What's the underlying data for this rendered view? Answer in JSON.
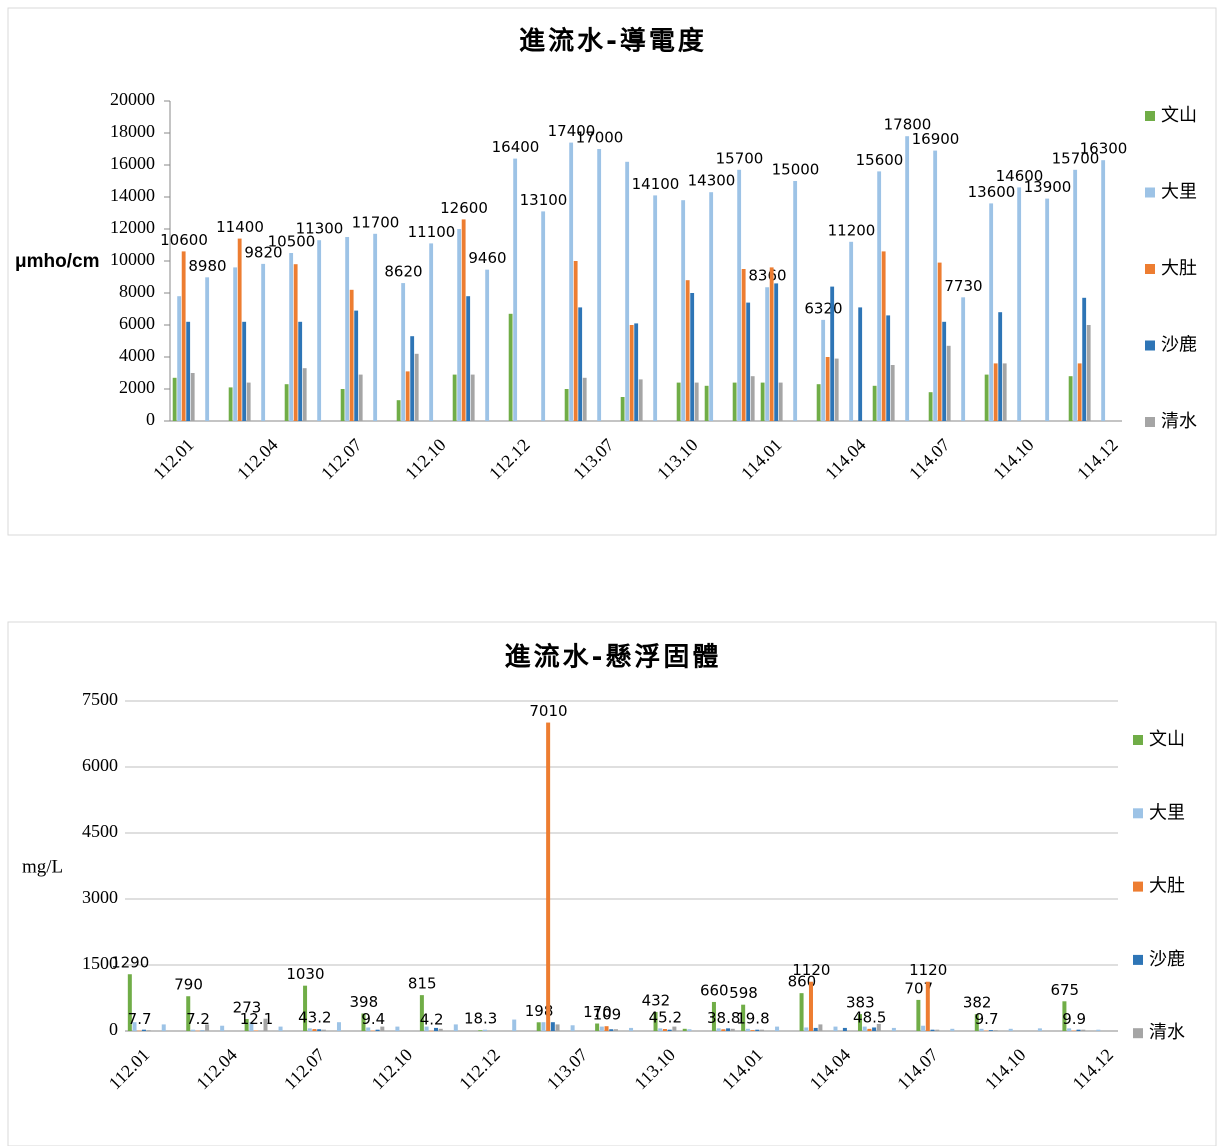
{
  "chart_data": [
    {
      "type": "bar",
      "title": "進流水-導電度",
      "y_label": "μmho/cm",
      "grid": false,
      "categories": [
        "112.01",
        null,
        null,
        "112.04",
        null,
        null,
        "112.07",
        null,
        null,
        "112.10",
        null,
        null,
        "112.12",
        null,
        null,
        "113.07",
        null,
        null,
        "113.10",
        null,
        null,
        "114.01",
        null,
        null,
        "114.04",
        null,
        null,
        "114.07",
        null,
        null,
        "114.10",
        null,
        null,
        "114.12"
      ],
      "ylim": [
        0,
        20000
      ],
      "yticks": [
        0,
        2000,
        4000,
        6000,
        8000,
        10000,
        12000,
        14000,
        16000,
        18000,
        20000
      ],
      "series": [
        {
          "name": "文山",
          "color": "#70ad47",
          "values": [
            2700,
            null,
            2100,
            null,
            2300,
            null,
            2000,
            null,
            1300,
            null,
            2900,
            null,
            6700,
            null,
            2000,
            null,
            1500,
            null,
            2400,
            2200,
            2400,
            2400,
            null,
            2300,
            null,
            2200,
            null,
            1800,
            null,
            2900,
            null,
            null,
            2800,
            null
          ]
        },
        {
          "name": "大里",
          "color": "#9dc3e6",
          "values": [
            7800,
            8980,
            9600,
            9820,
            10500,
            11300,
            11500,
            11700,
            8620,
            11100,
            12000,
            9460,
            16400,
            13100,
            17400,
            17000,
            16200,
            14100,
            13800,
            14300,
            15700,
            8360,
            15000,
            6320,
            11200,
            15600,
            17800,
            16900,
            7730,
            13600,
            14600,
            13900,
            15700,
            16300
          ],
          "value_labels": [
            null,
            "8980",
            null,
            "9820",
            "10500",
            "11300",
            null,
            "11700",
            "8620",
            "11100",
            null,
            "9460",
            "16400",
            "13100",
            "17400",
            "17000",
            null,
            "14100",
            null,
            "14300",
            "15700",
            "8360",
            "15000",
            "6320",
            "11200",
            "15600",
            "17800",
            "16900",
            "7730",
            "13600",
            "14600",
            "13900",
            "15700",
            "16300"
          ]
        },
        {
          "name": "大肚",
          "color": "#ed7d31",
          "values": [
            10600,
            null,
            11400,
            null,
            9800,
            null,
            8200,
            null,
            3100,
            null,
            12600,
            null,
            null,
            null,
            10000,
            null,
            6000,
            null,
            8800,
            null,
            9500,
            9600,
            null,
            4000,
            null,
            10600,
            null,
            9900,
            null,
            3600,
            null,
            null,
            3600,
            null
          ],
          "value_labels": [
            "10600",
            null,
            "11400",
            null,
            null,
            null,
            null,
            null,
            null,
            null,
            "12600",
            null,
            null,
            null,
            null,
            null,
            null,
            null,
            null,
            null,
            null,
            null,
            null,
            null,
            null,
            null,
            null,
            null,
            null,
            null,
            null,
            null,
            null,
            null
          ]
        },
        {
          "name": "沙鹿",
          "color": "#2e75b6",
          "values": [
            6200,
            null,
            6200,
            null,
            6200,
            null,
            6900,
            null,
            5300,
            null,
            7800,
            null,
            null,
            null,
            7100,
            null,
            6100,
            null,
            8000,
            null,
            7400,
            8600,
            null,
            8400,
            7100,
            6600,
            null,
            6200,
            null,
            6800,
            null,
            null,
            7700,
            null
          ]
        },
        {
          "name": "清水",
          "color": "#a5a5a5",
          "values": [
            3000,
            null,
            2400,
            null,
            3300,
            null,
            2900,
            null,
            4200,
            null,
            2900,
            null,
            null,
            null,
            2700,
            null,
            2600,
            null,
            2400,
            null,
            2800,
            2400,
            null,
            3900,
            null,
            3500,
            null,
            4700,
            null,
            3600,
            null,
            null,
            6000,
            null
          ]
        }
      ]
    },
    {
      "type": "bar",
      "title": "進流水-懸浮固體",
      "y_label": "mg/L",
      "grid": true,
      "categories": [
        "112.01",
        null,
        null,
        "112.04",
        null,
        null,
        "112.07",
        null,
        null,
        "112.10",
        null,
        null,
        "112.12",
        null,
        null,
        "113.07",
        null,
        null,
        "113.10",
        null,
        null,
        "114.01",
        null,
        null,
        "114.04",
        null,
        null,
        "114.07",
        null,
        null,
        "114.10",
        null,
        null,
        "114.12"
      ],
      "ylim": [
        0,
        7500
      ],
      "yticks": [
        0,
        1500,
        3000,
        4500,
        6000,
        7500
      ],
      "series": [
        {
          "name": "文山",
          "color": "#70ad47",
          "values": [
            1290,
            null,
            790,
            null,
            273,
            null,
            1030,
            null,
            398,
            null,
            815,
            null,
            18.3,
            null,
            198,
            null,
            170,
            null,
            432,
            50,
            660,
            598,
            null,
            860,
            null,
            383,
            null,
            707,
            null,
            382,
            null,
            null,
            675,
            null
          ],
          "value_labels": [
            "1290",
            null,
            "790",
            null,
            "273",
            null,
            "1030",
            null,
            "398",
            null,
            "815",
            null,
            "18.3",
            null,
            "198",
            null,
            "170",
            null,
            "432",
            null,
            "660",
            "598",
            null,
            "860",
            null,
            "383",
            null,
            "707",
            null,
            "382",
            null,
            null,
            "675",
            null
          ]
        },
        {
          "name": "大里",
          "color": "#9dc3e6",
          "values": [
            200,
            150,
            30,
            120,
            200,
            100,
            60,
            200,
            80,
            100,
            100,
            150,
            30,
            260,
            200,
            130,
            100,
            70,
            60,
            40,
            60,
            50,
            100,
            80,
            100,
            100,
            70,
            120,
            50,
            50,
            50,
            60,
            60,
            30
          ]
        },
        {
          "name": "大肚",
          "color": "#ed7d31",
          "values": [
            7.7,
            null,
            7.2,
            null,
            12.1,
            null,
            43.2,
            null,
            9.4,
            null,
            4.2,
            null,
            null,
            null,
            7010,
            null,
            109,
            null,
            45.2,
            null,
            38.8,
            19.8,
            null,
            1120,
            null,
            48.5,
            null,
            1120,
            null,
            9.7,
            null,
            null,
            9.9,
            null
          ],
          "value_labels": [
            "7.7",
            null,
            "7.2",
            null,
            "12.1",
            null,
            "43.2",
            null,
            "9.4",
            null,
            "4.2",
            null,
            null,
            null,
            "7010",
            null,
            "109",
            null,
            "45.2",
            null,
            "38.8",
            "19.8",
            null,
            "1120",
            null,
            "48.5",
            null,
            "1120",
            null,
            "9.7",
            null,
            null,
            "9.9",
            null
          ]
        },
        {
          "name": "沙鹿",
          "color": "#2e75b6",
          "values": [
            30,
            null,
            10,
            null,
            null,
            null,
            40,
            null,
            30,
            null,
            70,
            null,
            null,
            null,
            200,
            null,
            40,
            null,
            30,
            null,
            60,
            30,
            null,
            70,
            70,
            80,
            null,
            30,
            null,
            20,
            null,
            null,
            30,
            null
          ]
        },
        {
          "name": "清水",
          "color": "#a5a5a5",
          "values": [
            20,
            null,
            150,
            null,
            280,
            null,
            30,
            null,
            100,
            null,
            50,
            null,
            null,
            null,
            150,
            null,
            40,
            null,
            100,
            null,
            50,
            30,
            null,
            150,
            null,
            160,
            null,
            30,
            null,
            20,
            null,
            null,
            30,
            null
          ]
        }
      ]
    }
  ]
}
